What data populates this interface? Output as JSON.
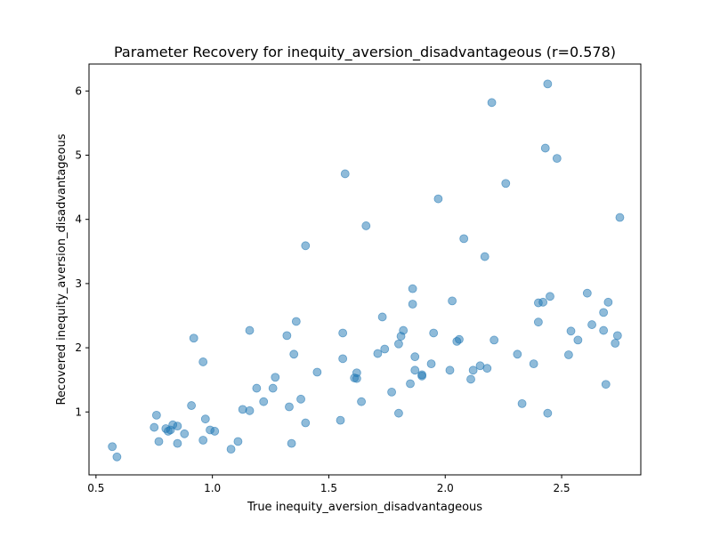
{
  "chart_data": {
    "type": "scatter",
    "title": "Parameter Recovery for inequity_aversion_disadvantageous (r=0.578)",
    "xlabel": "True inequity_aversion_disadvantageous",
    "ylabel": "Recovered inequity_aversion_disadvantageous",
    "xlim": [
      0.47,
      2.84
    ],
    "ylim": [
      0.02,
      6.42
    ],
    "xticks": [
      0.5,
      1.0,
      1.5,
      2.0,
      2.5
    ],
    "xtick_labels": [
      "0.5",
      "1.0",
      "1.5",
      "2.0",
      "2.5"
    ],
    "yticks": [
      1,
      2,
      3,
      4,
      5,
      6
    ],
    "ytick_labels": [
      "1",
      "2",
      "3",
      "4",
      "5",
      "6"
    ],
    "grid": false,
    "marker_color": "#1f77b4",
    "marker_alpha": 0.5,
    "points": [
      [
        0.57,
        0.46
      ],
      [
        0.59,
        0.3
      ],
      [
        0.75,
        0.76
      ],
      [
        0.76,
        0.95
      ],
      [
        0.77,
        0.54
      ],
      [
        0.8,
        0.74
      ],
      [
        0.81,
        0.7
      ],
      [
        0.82,
        0.72
      ],
      [
        0.83,
        0.8
      ],
      [
        0.85,
        0.51
      ],
      [
        0.85,
        0.78
      ],
      [
        0.88,
        0.66
      ],
      [
        0.91,
        1.1
      ],
      [
        0.92,
        2.15
      ],
      [
        0.96,
        0.56
      ],
      [
        0.96,
        1.78
      ],
      [
        0.97,
        0.89
      ],
      [
        0.99,
        0.72
      ],
      [
        1.01,
        0.7
      ],
      [
        1.08,
        0.42
      ],
      [
        1.11,
        0.54
      ],
      [
        1.13,
        1.04
      ],
      [
        1.16,
        1.02
      ],
      [
        1.16,
        2.27
      ],
      [
        1.19,
        1.37
      ],
      [
        1.22,
        1.16
      ],
      [
        1.26,
        1.37
      ],
      [
        1.27,
        1.54
      ],
      [
        1.32,
        2.19
      ],
      [
        1.33,
        1.08
      ],
      [
        1.34,
        0.51
      ],
      [
        1.35,
        1.9
      ],
      [
        1.36,
        2.41
      ],
      [
        1.38,
        1.2
      ],
      [
        1.4,
        0.83
      ],
      [
        1.4,
        3.59
      ],
      [
        1.45,
        1.62
      ],
      [
        1.55,
        0.87
      ],
      [
        1.56,
        2.23
      ],
      [
        1.56,
        1.83
      ],
      [
        1.57,
        4.71
      ],
      [
        1.61,
        1.53
      ],
      [
        1.62,
        1.52
      ],
      [
        1.62,
        1.61
      ],
      [
        1.64,
        1.16
      ],
      [
        1.66,
        3.9
      ],
      [
        1.71,
        1.91
      ],
      [
        1.73,
        2.48
      ],
      [
        1.74,
        1.98
      ],
      [
        1.77,
        1.31
      ],
      [
        1.8,
        0.98
      ],
      [
        1.8,
        2.06
      ],
      [
        1.81,
        2.18
      ],
      [
        1.82,
        2.27
      ],
      [
        1.85,
        1.44
      ],
      [
        1.86,
        2.68
      ],
      [
        1.86,
        2.92
      ],
      [
        1.87,
        1.86
      ],
      [
        1.87,
        1.65
      ],
      [
        1.9,
        1.58
      ],
      [
        1.9,
        1.56
      ],
      [
        1.94,
        1.75
      ],
      [
        1.95,
        2.23
      ],
      [
        1.97,
        4.32
      ],
      [
        2.02,
        1.65
      ],
      [
        2.03,
        2.73
      ],
      [
        2.05,
        2.1
      ],
      [
        2.06,
        2.13
      ],
      [
        2.08,
        3.7
      ],
      [
        2.11,
        1.51
      ],
      [
        2.12,
        1.65
      ],
      [
        2.15,
        1.72
      ],
      [
        2.17,
        3.42
      ],
      [
        2.18,
        1.68
      ],
      [
        2.2,
        5.82
      ],
      [
        2.21,
        2.12
      ],
      [
        2.26,
        4.56
      ],
      [
        2.31,
        1.9
      ],
      [
        2.33,
        1.13
      ],
      [
        2.38,
        1.75
      ],
      [
        2.4,
        2.4
      ],
      [
        2.4,
        2.7
      ],
      [
        2.42,
        2.71
      ],
      [
        2.43,
        5.11
      ],
      [
        2.44,
        6.11
      ],
      [
        2.44,
        0.98
      ],
      [
        2.45,
        2.8
      ],
      [
        2.48,
        4.95
      ],
      [
        2.53,
        1.89
      ],
      [
        2.54,
        2.26
      ],
      [
        2.57,
        2.12
      ],
      [
        2.61,
        2.85
      ],
      [
        2.63,
        2.36
      ],
      [
        2.68,
        2.27
      ],
      [
        2.68,
        2.55
      ],
      [
        2.69,
        1.43
      ],
      [
        2.7,
        2.71
      ],
      [
        2.73,
        2.07
      ],
      [
        2.74,
        2.19
      ],
      [
        2.75,
        4.03
      ]
    ]
  }
}
